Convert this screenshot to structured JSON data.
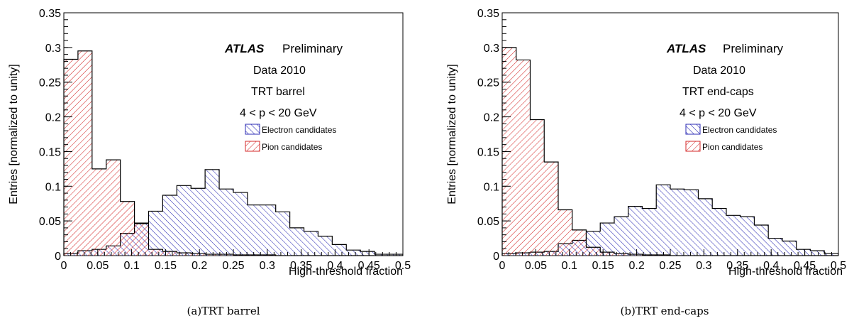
{
  "chart_data": [
    {
      "type": "histogram",
      "title": "",
      "caption": "(a)TRT barrel",
      "xlabel": "High-threshold fraction",
      "ylabel": "Entries [normalized to unity]",
      "xlim": [
        0,
        0.5
      ],
      "ylim": [
        0,
        0.35
      ],
      "xticks": [
        "0",
        "0.05",
        "0.1",
        "0.15",
        "0.2",
        "0.25",
        "0.3",
        "0.35",
        "0.4",
        "0.45",
        "0.5"
      ],
      "yticks": [
        "0",
        "0.05",
        "0.1",
        "0.15",
        "0.2",
        "0.25",
        "0.3",
        "0.35"
      ],
      "annotations": {
        "experiment": "ATLAS",
        "status": "Preliminary",
        "dataset": "Data 2010",
        "detector": "TRT barrel",
        "momentum": "4 < p < 20 GeV"
      },
      "bin_width": 0.02083,
      "legend_position": "upper-right",
      "series": [
        {
          "name": "Electron candidates",
          "color": "#2b2bb4",
          "values": [
            0.003,
            0.007,
            0.009,
            0.014,
            0.032,
            0.047,
            0.064,
            0.087,
            0.101,
            0.097,
            0.124,
            0.096,
            0.091,
            0.073,
            0.073,
            0.063,
            0.04,
            0.035,
            0.028,
            0.016,
            0.008,
            0.006,
            0.002,
            0.002
          ]
        },
        {
          "name": "Pion candidates",
          "color": "#d42a2a",
          "values": [
            0.283,
            0.295,
            0.125,
            0.138,
            0.078,
            0.046,
            0.009,
            0.006,
            0.004,
            0.003,
            0.002,
            0.002,
            0.001,
            0.001,
            0.001,
            0.0,
            0.0,
            0.0,
            0.0,
            0.0,
            0.0,
            0.0,
            0.0,
            0.0
          ]
        }
      ]
    },
    {
      "type": "histogram",
      "title": "",
      "caption": "(b)TRT end-caps",
      "xlabel": "High-threshold fraction",
      "ylabel": "Entries [normalized to unity]",
      "xlim": [
        0,
        0.5
      ],
      "ylim": [
        0,
        0.35
      ],
      "xticks": [
        "0",
        "0.05",
        "0.1",
        "0.15",
        "0.2",
        "0.25",
        "0.3",
        "0.35",
        "0.4",
        "0.45",
        "0.5"
      ],
      "yticks": [
        "0",
        "0.05",
        "0.1",
        "0.15",
        "0.2",
        "0.25",
        "0.3",
        "0.35"
      ],
      "annotations": {
        "experiment": "ATLAS",
        "status": "Preliminary",
        "dataset": "Data 2010",
        "detector": "TRT end-caps",
        "momentum": "4 < p < 20 GeV"
      },
      "bin_width": 0.02083,
      "legend_position": "upper-right",
      "series": [
        {
          "name": "Electron candidates",
          "color": "#2b2bb4",
          "values": [
            0.003,
            0.004,
            0.005,
            0.006,
            0.017,
            0.022,
            0.035,
            0.047,
            0.056,
            0.071,
            0.068,
            0.102,
            0.096,
            0.095,
            0.082,
            0.068,
            0.058,
            0.056,
            0.044,
            0.025,
            0.021,
            0.009,
            0.007,
            0.003
          ]
        },
        {
          "name": "Pion candidates",
          "color": "#d42a2a",
          "values": [
            0.3,
            0.282,
            0.196,
            0.135,
            0.066,
            0.037,
            0.012,
            0.005,
            0.003,
            0.002,
            0.001,
            0.001,
            0.0,
            0.0,
            0.0,
            0.0,
            0.0,
            0.0,
            0.0,
            0.0,
            0.0,
            0.0,
            0.0,
            0.0
          ]
        }
      ]
    }
  ]
}
